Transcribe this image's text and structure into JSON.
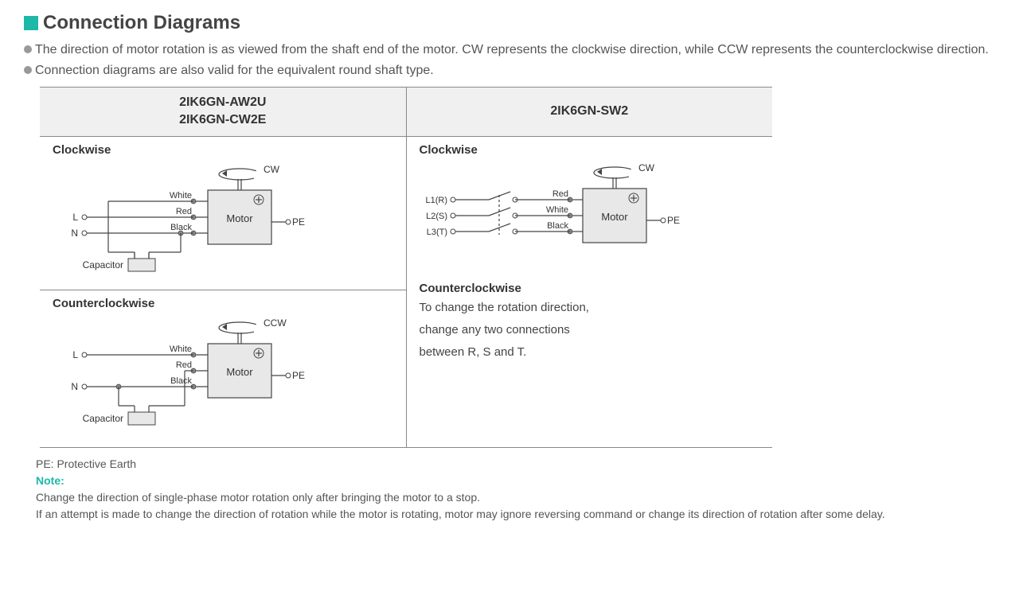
{
  "title": "Connection Diagrams",
  "bullets": [
    "The direction of motor rotation is as viewed from the shaft end of the motor. CW represents the clockwise direction, while CCW represents the counterclockwise direction.",
    "Connection diagrams are also valid for the equivalent round shaft type."
  ],
  "headers": {
    "col1_line1": "2IK6GN-AW2U",
    "col1_line2": "2IK6GN-CW2E",
    "col2": "2IK6GN-SW2"
  },
  "sections": {
    "cw": "Clockwise",
    "ccw": "Counterclockwise"
  },
  "ccw_note_lines": [
    "To change the rotation direction,",
    "change any two connections",
    "between R, S and T."
  ],
  "diagram_labels": {
    "motor": "Motor",
    "pe": "PE",
    "capacitor": "Capacitor",
    "cw": "CW",
    "ccw": "CCW",
    "wires_single": {
      "white": "White",
      "red": "Red",
      "black": "Black"
    },
    "terminals_single": {
      "L": "L",
      "N": "N"
    },
    "terminals_three": {
      "L1": "L1(R)",
      "L2": "L2(S)",
      "L3": "L3(T)"
    }
  },
  "footer": {
    "pe": "PE: Protective Earth",
    "note_label": "Note:",
    "note_lines": [
      "Change the direction of single-phase motor rotation only after bringing the motor to a stop.",
      "If an attempt is made to change the direction of rotation while the motor is rotating, motor may ignore reversing command or change its direction of rotation after some delay."
    ]
  },
  "colors": {
    "accent": "#1eb8a8",
    "motor_fill": "#e8e8e8",
    "stroke": "#444444",
    "text": "#333333",
    "node_fill": "#888888"
  },
  "style": {
    "font_label": 11,
    "font_small": 10,
    "stroke_width": 1.2
  }
}
